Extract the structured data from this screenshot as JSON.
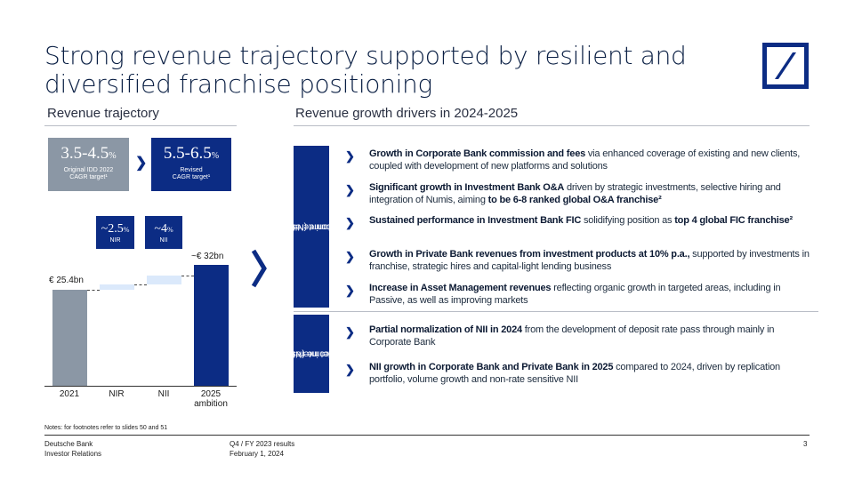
{
  "title": "Strong revenue trajectory supported by resilient and diversified franchise positioning",
  "left": {
    "heading": "Revenue trajectory",
    "cagr_original": {
      "value": "3.5-4.5",
      "unit": "%",
      "sub1": "Original IDD 2022",
      "sub2": "CAGR target¹"
    },
    "cagr_revised": {
      "value": "5.5-6.5",
      "unit": "%",
      "sub1": "Revised",
      "sub2": "CAGR target¹"
    },
    "nir_growth": {
      "value": "~2.5",
      "unit": "%",
      "label": "NIR"
    },
    "nii_growth": {
      "value": "~4",
      "unit": "%",
      "label": "NII"
    },
    "label_2021": "€ 25.4bn",
    "label_2025": "~€ 32bn",
    "categories": [
      "2021",
      "NIR",
      "NII"
    ],
    "cat_last_1": "2025",
    "cat_last_2": "ambition"
  },
  "chart_data": {
    "type": "bar",
    "categories": [
      "2021",
      "NIR",
      "NII",
      "2025 ambition"
    ],
    "values": [
      25.4,
      1.4,
      2.3,
      32
    ],
    "ylim": [
      0,
      32
    ]
  },
  "right": {
    "heading": "Revenue growth drivers in 2024-2025",
    "group1_label_1": "Noninterest",
    "group1_label_2": "income (NIR)",
    "group2_label_1": "Net interest",
    "group2_label_2": "income (NII)",
    "drivers": [
      {
        "b1": "Growth in Corporate Bank commission and fees",
        "t1": " via enhanced coverage of existing and new clients, coupled with development of new platforms and solutions",
        "b2": "",
        "t2": ""
      },
      {
        "b1": "Significant growth in Investment Bank O&A",
        "t1": " driven by strategic investments, selective hiring and integration of Numis, aiming ",
        "b2": "to be 6-8 ranked global O&A franchise²",
        "t2": ""
      },
      {
        "b1": "Sustained performance in Investment Bank FIC",
        "t1": " solidifying position as ",
        "b2": "top 4 global FIC franchise²",
        "t2": ""
      },
      {
        "b1": "Growth in Private Bank revenues from investment products at 10% p.a.,",
        "t1": " supported by investments in franchise, strategic hires and capital-light lending business",
        "b2": "",
        "t2": ""
      },
      {
        "b1": "Increase in Asset Management revenues",
        "t1": " reflecting organic growth in targeted areas, including in Passive, as well as improving markets",
        "b2": "",
        "t2": ""
      },
      {
        "b1": "Partial normalization of NII in 2024",
        "t1": " from the development of deposit rate pass through mainly in Corporate Bank",
        "b2": "",
        "t2": ""
      },
      {
        "b1": "NII growth in Corporate Bank and Private Bank in 2025",
        "t1": " compared to 2024, driven by replication portfolio, volume growth and non-rate sensitive NII",
        "b2": "",
        "t2": ""
      }
    ]
  },
  "notes": "Notes: for footnotes refer to slides 50 and 51",
  "footer": {
    "company_1": "Deutsche Bank",
    "company_2": "Investor Relations",
    "event_1": "Q4 / FY 2023 results",
    "event_2": "February  1, 2024",
    "page": "3"
  },
  "colors": {
    "navy": "#0c2c84",
    "grey": "#8b97a5",
    "light_blue": "#dbe9fb"
  }
}
